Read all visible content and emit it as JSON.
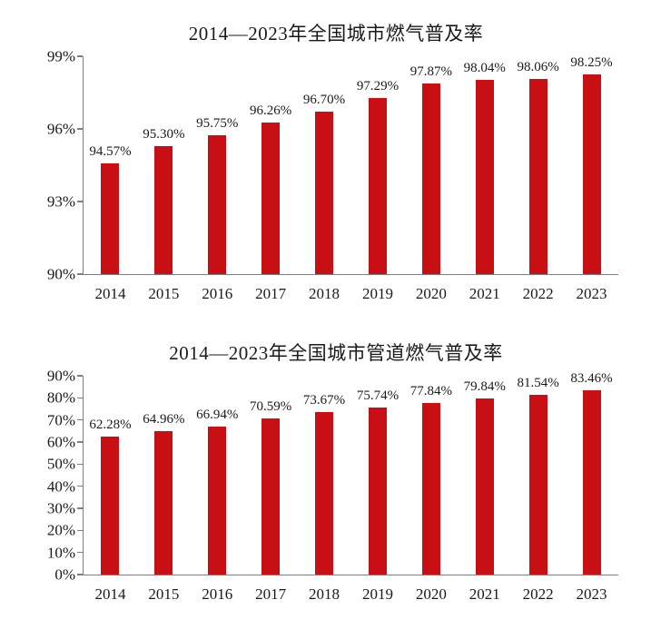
{
  "colors": {
    "bar": "#C80F14",
    "axis": "#7f7f7f",
    "text": "#1a1a1a"
  },
  "chart_data": [
    {
      "type": "bar",
      "title": "2014—2023年全国城市燃气普及率",
      "categories": [
        "2014",
        "2015",
        "2016",
        "2017",
        "2018",
        "2019",
        "2020",
        "2021",
        "2022",
        "2023"
      ],
      "values": [
        94.57,
        95.3,
        95.75,
        96.26,
        96.7,
        97.29,
        97.87,
        98.04,
        98.06,
        98.25
      ],
      "value_labels": [
        "94.57%",
        "95.30%",
        "95.75%",
        "96.26%",
        "96.70%",
        "97.29%",
        "97.87%",
        "98.04%",
        "98.06%",
        "98.25%"
      ],
      "unit": "%",
      "xlabel": "",
      "ylabel": "",
      "ylim": [
        90,
        99
      ],
      "yticks": [
        90,
        93,
        96,
        99
      ],
      "ytick_labels": [
        "90%",
        "93%",
        "96%",
        "99%"
      ],
      "grid": false,
      "legend": "none",
      "bar_color": "#C80F14"
    },
    {
      "type": "bar",
      "title": "2014—2023年全国城市管道燃气普及率",
      "categories": [
        "2014",
        "2015",
        "2016",
        "2017",
        "2018",
        "2019",
        "2020",
        "2021",
        "2022",
        "2023"
      ],
      "values": [
        62.28,
        64.96,
        66.94,
        70.59,
        73.67,
        75.74,
        77.84,
        79.84,
        81.54,
        83.46
      ],
      "value_labels": [
        "62.28%",
        "64.96%",
        "66.94%",
        "70.59%",
        "73.67%",
        "75.74%",
        "77.84%",
        "79.84%",
        "81.54%",
        "83.46%"
      ],
      "unit": "%",
      "xlabel": "",
      "ylabel": "",
      "ylim": [
        0,
        90
      ],
      "yticks": [
        0,
        10,
        20,
        30,
        40,
        50,
        60,
        70,
        80,
        90
      ],
      "ytick_labels": [
        "0%",
        "10%",
        "20%",
        "30%",
        "40%",
        "50%",
        "60%",
        "70%",
        "80%",
        "90%"
      ],
      "grid": false,
      "legend": "none",
      "bar_color": "#C80F14"
    }
  ]
}
